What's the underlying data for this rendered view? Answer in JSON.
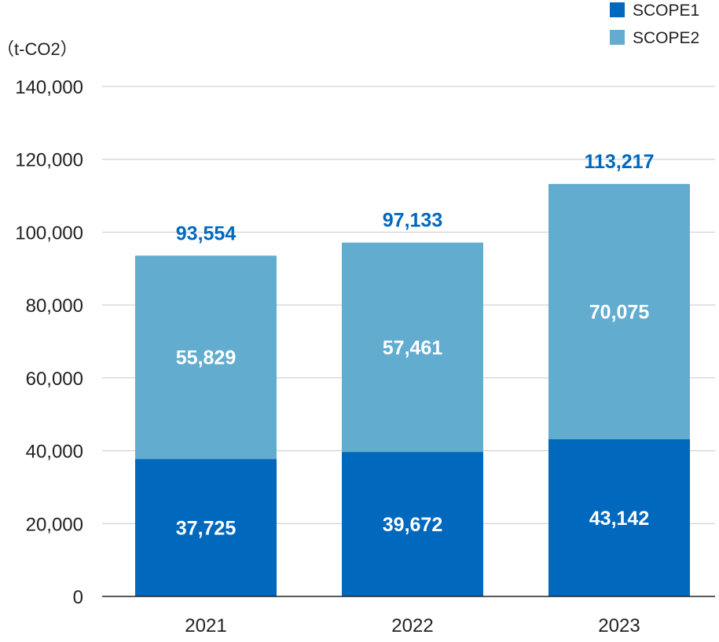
{
  "chart_data": {
    "type": "bar",
    "stacked": true,
    "unit_label": "（t-CO2）",
    "categories": [
      "2021",
      "2022",
      "2023"
    ],
    "series": [
      {
        "name": "SCOPE1",
        "color": "#0068bd",
        "values": [
          37725,
          39672,
          43142
        ],
        "labels": [
          "37,725",
          "39,672",
          "43,142"
        ]
      },
      {
        "name": "SCOPE2",
        "color": "#62acd0",
        "values": [
          55829,
          57461,
          70075
        ],
        "labels": [
          "55,829",
          "57,461",
          "70,075"
        ]
      }
    ],
    "totals": [
      93554,
      97133,
      113217
    ],
    "total_labels": [
      "93,554",
      "97,133",
      "113,217"
    ],
    "total_color": "#0068bd",
    "ylim": [
      0,
      140000
    ],
    "yticks": [
      0,
      20000,
      40000,
      60000,
      80000,
      100000,
      120000,
      140000
    ],
    "ytick_labels": [
      "0",
      "20,000",
      "40,000",
      "60,000",
      "80,000",
      "100,000",
      "120,000",
      "140,000"
    ],
    "grid": true,
    "legend_position": "top-right"
  }
}
